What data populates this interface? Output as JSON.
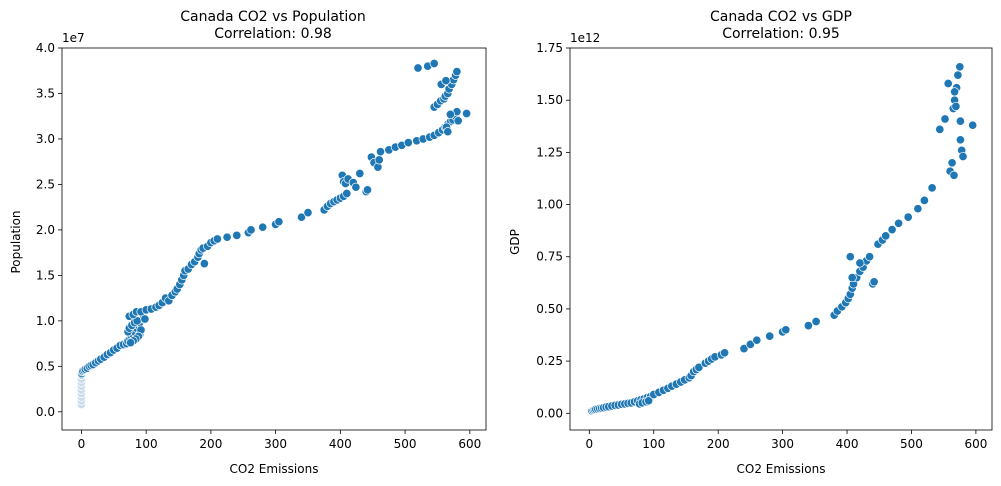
{
  "chart_data": [
    {
      "type": "scatter",
      "title": "Canada CO2 vs Population",
      "subtitle": "Correlation: 0.98",
      "xlabel": "CO2 Emissions",
      "ylabel": "Population",
      "y_offset_label": "1e7",
      "y_multiplier": 10000000,
      "xlim": [
        -30,
        625
      ],
      "ylim": [
        -0.2,
        4.0
      ],
      "xticks": [
        0,
        100,
        200,
        300,
        400,
        500,
        600
      ],
      "yticks": [
        0.0,
        0.5,
        1.0,
        1.5,
        2.0,
        2.5,
        3.0,
        3.5,
        4.0
      ],
      "xtick_labels": [
        "0",
        "100",
        "200",
        "300",
        "400",
        "500",
        "600"
      ],
      "ytick_labels": [
        "0.0",
        "0.5",
        "1.0",
        "1.5",
        "2.0",
        "2.5",
        "3.0",
        "3.5",
        "4.0"
      ],
      "series_color": "#1f77b4",
      "faded_color": "#c9dcec",
      "faded_points": [
        [
          0,
          0.08
        ],
        [
          0,
          0.12
        ],
        [
          0,
          0.16
        ],
        [
          0,
          0.2
        ],
        [
          0,
          0.24
        ],
        [
          0,
          0.28
        ],
        [
          0,
          0.32
        ],
        [
          0,
          0.36
        ],
        [
          0,
          0.4
        ]
      ],
      "points": [
        [
          0.5,
          0.42
        ],
        [
          1,
          0.44
        ],
        [
          2,
          0.45
        ],
        [
          4,
          0.46
        ],
        [
          6,
          0.47
        ],
        [
          9,
          0.48
        ],
        [
          12,
          0.5
        ],
        [
          15,
          0.51
        ],
        [
          18,
          0.52
        ],
        [
          22,
          0.54
        ],
        [
          26,
          0.56
        ],
        [
          30,
          0.58
        ],
        [
          35,
          0.6
        ],
        [
          40,
          0.63
        ],
        [
          45,
          0.65
        ],
        [
          50,
          0.68
        ],
        [
          55,
          0.7
        ],
        [
          60,
          0.73
        ],
        [
          65,
          0.74
        ],
        [
          70,
          0.75
        ],
        [
          72,
          0.78
        ],
        [
          75,
          0.8
        ],
        [
          78,
          0.82
        ],
        [
          80,
          0.85
        ],
        [
          82,
          0.88
        ],
        [
          85,
          0.92
        ],
        [
          88,
          0.95
        ],
        [
          90,
          0.98
        ],
        [
          95,
          1.02
        ],
        [
          72,
          0.88
        ],
        [
          74,
          0.92
        ],
        [
          78,
          0.95
        ],
        [
          82,
          0.98
        ],
        [
          86,
          1.0
        ],
        [
          90,
          0.85
        ],
        [
          92,
          0.9
        ],
        [
          88,
          0.83
        ],
        [
          84,
          0.8
        ],
        [
          80,
          0.78
        ],
        [
          76,
          0.76
        ],
        [
          74,
          1.05
        ],
        [
          80,
          1.07
        ],
        [
          85,
          1.1
        ],
        [
          92,
          1.1
        ],
        [
          98,
          1.02
        ],
        [
          100,
          1.12
        ],
        [
          108,
          1.13
        ],
        [
          115,
          1.15
        ],
        [
          120,
          1.17
        ],
        [
          125,
          1.2
        ],
        [
          130,
          1.25
        ],
        [
          135,
          1.22
        ],
        [
          140,
          1.28
        ],
        [
          145,
          1.32
        ],
        [
          148,
          1.35
        ],
        [
          152,
          1.4
        ],
        [
          155,
          1.45
        ],
        [
          158,
          1.5
        ],
        [
          160,
          1.55
        ],
        [
          165,
          1.57
        ],
        [
          170,
          1.62
        ],
        [
          175,
          1.65
        ],
        [
          180,
          1.7
        ],
        [
          182,
          1.74
        ],
        [
          185,
          1.78
        ],
        [
          188,
          1.8
        ],
        [
          190,
          1.63
        ],
        [
          195,
          1.82
        ],
        [
          200,
          1.86
        ],
        [
          205,
          1.88
        ],
        [
          210,
          1.9
        ],
        [
          225,
          1.92
        ],
        [
          240,
          1.94
        ],
        [
          258,
          1.97
        ],
        [
          262,
          2.0
        ],
        [
          280,
          2.03
        ],
        [
          300,
          2.06
        ],
        [
          305,
          2.09
        ],
        [
          340,
          2.14
        ],
        [
          350,
          2.19
        ],
        [
          375,
          2.22
        ],
        [
          380,
          2.26
        ],
        [
          385,
          2.29
        ],
        [
          390,
          2.31
        ],
        [
          395,
          2.33
        ],
        [
          400,
          2.35
        ],
        [
          405,
          2.37
        ],
        [
          410,
          2.4
        ],
        [
          403,
          2.6
        ],
        [
          405,
          2.53
        ],
        [
          408,
          2.51
        ],
        [
          412,
          2.56
        ],
        [
          420,
          2.52
        ],
        [
          424,
          2.47
        ],
        [
          430,
          2.62
        ],
        [
          440,
          2.42
        ],
        [
          442,
          2.44
        ],
        [
          448,
          2.8
        ],
        [
          452,
          2.74
        ],
        [
          458,
          2.69
        ],
        [
          460,
          2.77
        ],
        [
          462,
          2.86
        ],
        [
          475,
          2.88
        ],
        [
          485,
          2.91
        ],
        [
          495,
          2.93
        ],
        [
          505,
          2.96
        ],
        [
          518,
          2.98
        ],
        [
          528,
          3.0
        ],
        [
          538,
          3.02
        ],
        [
          545,
          3.04
        ],
        [
          552,
          3.07
        ],
        [
          558,
          3.1
        ],
        [
          562,
          3.13
        ],
        [
          566,
          3.16
        ],
        [
          570,
          3.19
        ],
        [
          574,
          3.21
        ],
        [
          578,
          3.25
        ],
        [
          580,
          3.3
        ],
        [
          582,
          3.2
        ],
        [
          595,
          3.28
        ],
        [
          545,
          3.35
        ],
        [
          550,
          3.38
        ],
        [
          555,
          3.42
        ],
        [
          560,
          3.44
        ],
        [
          562,
          3.47
        ],
        [
          566,
          3.5
        ],
        [
          568,
          3.55
        ],
        [
          572,
          3.6
        ],
        [
          575,
          3.65
        ],
        [
          578,
          3.7
        ],
        [
          580,
          3.74
        ],
        [
          556,
          3.6
        ],
        [
          563,
          3.64
        ],
        [
          520,
          3.78
        ],
        [
          535,
          3.8
        ],
        [
          545,
          3.83
        ],
        [
          564,
          3.13
        ],
        [
          566,
          3.08
        ],
        [
          570,
          3.27
        ]
      ]
    },
    {
      "type": "scatter",
      "title": "Canada CO2 vs GDP",
      "subtitle": "Correlation: 0.95",
      "xlabel": "CO2 Emissions",
      "ylabel": "GDP",
      "y_offset_label": "1e12",
      "y_multiplier": 1000000000000,
      "xlim": [
        -30,
        625
      ],
      "ylim": [
        -0.08,
        1.75
      ],
      "xticks": [
        0,
        100,
        200,
        300,
        400,
        500,
        600
      ],
      "yticks": [
        0.0,
        0.25,
        0.5,
        0.75,
        1.0,
        1.25,
        1.5,
        1.75
      ],
      "xtick_labels": [
        "0",
        "100",
        "200",
        "300",
        "400",
        "500",
        "600"
      ],
      "ytick_labels": [
        "0.00",
        "0.25",
        "0.50",
        "0.75",
        "1.00",
        "1.25",
        "1.50",
        "1.75"
      ],
      "series_color": "#1f77b4",
      "faded_color": "#c9dcec",
      "faded_points": [
        [
          0,
          0.005
        ],
        [
          1,
          0.008
        ],
        [
          2,
          0.01
        ],
        [
          3,
          0.012
        ]
      ],
      "points": [
        [
          4,
          0.012
        ],
        [
          6,
          0.015
        ],
        [
          8,
          0.017
        ],
        [
          10,
          0.019
        ],
        [
          13,
          0.021
        ],
        [
          16,
          0.023
        ],
        [
          19,
          0.025
        ],
        [
          22,
          0.027
        ],
        [
          26,
          0.03
        ],
        [
          30,
          0.032
        ],
        [
          35,
          0.035
        ],
        [
          40,
          0.038
        ],
        [
          45,
          0.04
        ],
        [
          50,
          0.043
        ],
        [
          55,
          0.045
        ],
        [
          60,
          0.048
        ],
        [
          65,
          0.05
        ],
        [
          70,
          0.055
        ],
        [
          75,
          0.06
        ],
        [
          80,
          0.065
        ],
        [
          85,
          0.07
        ],
        [
          90,
          0.075
        ],
        [
          95,
          0.08
        ],
        [
          78,
          0.045
        ],
        [
          82,
          0.05
        ],
        [
          88,
          0.055
        ],
        [
          92,
          0.06
        ],
        [
          100,
          0.09
        ],
        [
          108,
          0.1
        ],
        [
          115,
          0.11
        ],
        [
          122,
          0.12
        ],
        [
          128,
          0.13
        ],
        [
          135,
          0.14
        ],
        [
          142,
          0.15
        ],
        [
          148,
          0.16
        ],
        [
          155,
          0.17
        ],
        [
          158,
          0.18
        ],
        [
          162,
          0.2
        ],
        [
          166,
          0.21
        ],
        [
          170,
          0.22
        ],
        [
          180,
          0.24
        ],
        [
          185,
          0.25
        ],
        [
          190,
          0.26
        ],
        [
          195,
          0.27
        ],
        [
          205,
          0.28
        ],
        [
          210,
          0.29
        ],
        [
          240,
          0.31
        ],
        [
          250,
          0.33
        ],
        [
          260,
          0.35
        ],
        [
          280,
          0.37
        ],
        [
          300,
          0.39
        ],
        [
          305,
          0.4
        ],
        [
          340,
          0.42
        ],
        [
          352,
          0.44
        ],
        [
          380,
          0.47
        ],
        [
          385,
          0.49
        ],
        [
          392,
          0.51
        ],
        [
          398,
          0.53
        ],
        [
          402,
          0.55
        ],
        [
          405,
          0.57
        ],
        [
          408,
          0.6
        ],
        [
          410,
          0.62
        ],
        [
          415,
          0.65
        ],
        [
          420,
          0.68
        ],
        [
          425,
          0.7
        ],
        [
          430,
          0.73
        ],
        [
          435,
          0.75
        ],
        [
          440,
          0.62
        ],
        [
          442,
          0.63
        ],
        [
          405,
          0.75
        ],
        [
          408,
          0.65
        ],
        [
          420,
          0.72
        ],
        [
          448,
          0.81
        ],
        [
          455,
          0.83
        ],
        [
          460,
          0.85
        ],
        [
          470,
          0.88
        ],
        [
          480,
          0.91
        ],
        [
          495,
          0.94
        ],
        [
          510,
          0.98
        ],
        [
          520,
          1.02
        ],
        [
          532,
          1.08
        ],
        [
          544,
          1.36
        ],
        [
          552,
          1.41
        ],
        [
          557,
          1.58
        ],
        [
          560,
          1.16
        ],
        [
          563,
          1.2
        ],
        [
          566,
          1.14
        ],
        [
          565,
          1.46
        ],
        [
          567,
          1.5
        ],
        [
          570,
          1.56
        ],
        [
          572,
          1.62
        ],
        [
          575,
          1.66
        ],
        [
          576,
          1.4
        ],
        [
          576,
          1.31
        ],
        [
          578,
          1.26
        ],
        [
          580,
          1.23
        ],
        [
          595,
          1.38
        ],
        [
          567,
          1.54
        ],
        [
          569,
          1.47
        ]
      ]
    }
  ]
}
